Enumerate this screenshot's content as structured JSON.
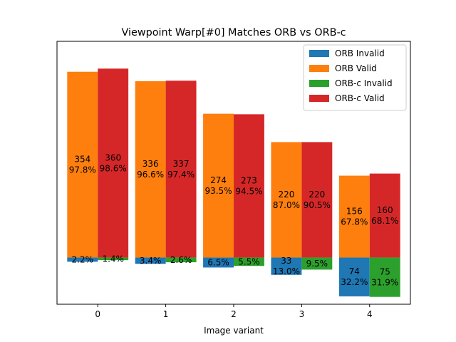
{
  "chart_data": {
    "type": "bar",
    "title": "Viewpoint Warp[#0] Matches ORB vs ORB-c",
    "xlabel": "Image variant",
    "ylabel": "",
    "categories": [
      "0",
      "1",
      "2",
      "3",
      "4"
    ],
    "ylim": [
      -89,
      412
    ],
    "legend_position": "top-right",
    "grid": false,
    "series": [
      {
        "name": "ORB Invalid",
        "color": "#1f77b4",
        "offset": "left",
        "direction": "down",
        "values": [
          8,
          12,
          19,
          33,
          74
        ],
        "labels": [
          "2.2%",
          "3.4%",
          "6.5%",
          "33\n13.0%",
          "74\n32.2%"
        ]
      },
      {
        "name": "ORB Valid",
        "color": "#ff7f0e",
        "offset": "left",
        "direction": "up",
        "values": [
          354,
          336,
          274,
          220,
          156
        ],
        "labels": [
          "354\n97.8%",
          "336\n96.6%",
          "274\n93.5%",
          "220\n87.0%",
          "156\n67.8%"
        ]
      },
      {
        "name": "ORB-c Invalid",
        "color": "#2ca02c",
        "offset": "right",
        "direction": "down",
        "values": [
          5,
          9,
          16,
          23,
          75
        ],
        "labels": [
          "1.4%",
          "2.6%",
          "5.5%",
          "9.5%",
          "75\n31.9%"
        ]
      },
      {
        "name": "ORB-c Valid",
        "color": "#d62728",
        "offset": "right",
        "direction": "up",
        "values": [
          360,
          337,
          273,
          220,
          160
        ],
        "labels": [
          "360\n98.6%",
          "337\n97.4%",
          "273\n94.5%",
          "220\n90.5%",
          "160\n68.1%"
        ]
      }
    ]
  }
}
